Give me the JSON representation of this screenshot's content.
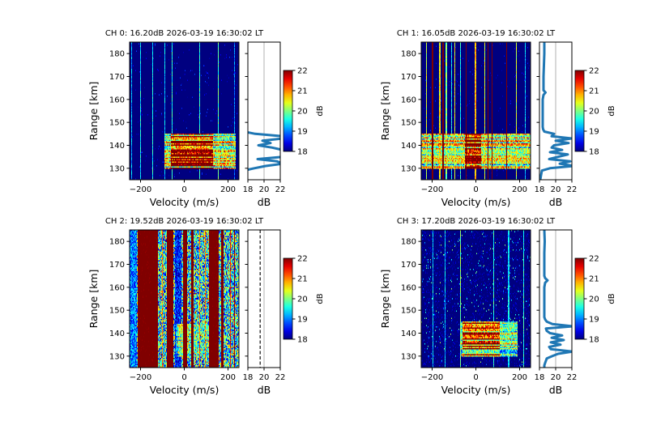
{
  "chart_data": [
    {
      "type": "heatmap",
      "title": "CH 0: 16.20dB 2026-03-19 16:30:02 LT",
      "xlabel": "Velocity (m/s)",
      "ylabel": "Range [km]",
      "xlim": [
        -250,
        250
      ],
      "ylim": [
        125,
        185
      ],
      "x_ticks": [
        -200,
        0,
        200
      ],
      "x_tick_labels": [
        "−200",
        "0",
        "200"
      ],
      "y_ticks": [
        130,
        140,
        150,
        160,
        170,
        180
      ],
      "y_tick_labels": [
        "130",
        "140",
        "150",
        "160",
        "170",
        "180"
      ],
      "colormap": "jet",
      "clim": [
        18,
        22
      ],
      "colorbar": {
        "label": "dB",
        "ticks": [
          18,
          19,
          20,
          21,
          22
        ],
        "tick_labels": [
          "18",
          "19",
          "20",
          "21",
          "22"
        ]
      },
      "noise_floor_db": 16.2,
      "streaks": [
        {
          "velocity": -240,
          "db": 19.2
        },
        {
          "velocity": -200,
          "db": 19.5
        },
        {
          "velocity": -145,
          "db": 19.5
        },
        {
          "velocity": -90,
          "db": 19.3
        },
        {
          "velocity": -55,
          "db": 19.6
        },
        {
          "velocity": 70,
          "db": 19.6
        },
        {
          "velocity": 155,
          "db": 19.8
        },
        {
          "velocity": 230,
          "db": 19
        }
      ],
      "echo": {
        "range_km": [
          130,
          145
        ],
        "velocity": [
          -90,
          235
        ],
        "core_velocity": [
          -60,
          130
        ],
        "peak_db": 23
      },
      "profile": {
        "xlabel": "dB",
        "xlim": [
          18,
          22
        ],
        "x_ticks": [
          18,
          20,
          22
        ],
        "x_tick_labels": [
          "18",
          "20",
          "22"
        ],
        "reference_line_db": 20,
        "noise_line_db": null,
        "range_km": [
          125,
          126,
          127,
          128,
          129,
          130,
          131,
          132,
          133,
          134,
          135,
          136,
          137,
          138,
          139,
          140,
          141,
          142,
          143,
          144,
          145,
          146,
          147,
          148,
          149,
          150,
          155,
          160,
          165,
          170,
          175,
          180,
          185
        ],
        "db": [
          17,
          17,
          17,
          17,
          17.5,
          18.8,
          20.2,
          22.3,
          21.6,
          19.2,
          22.3,
          22.3,
          22.3,
          22.3,
          21,
          19.3,
          20.8,
          19.8,
          22.3,
          22.3,
          18.9,
          17.5,
          17,
          17,
          17,
          17,
          17,
          17,
          17,
          17,
          17,
          17,
          17
        ]
      }
    },
    {
      "type": "heatmap",
      "title": "CH 1: 16.05dB 2026-03-19 16:30:02 LT",
      "xlabel": "Velocity (m/s)",
      "ylabel": "Range [km]",
      "xlim": [
        -250,
        250
      ],
      "ylim": [
        125,
        185
      ],
      "x_ticks": [
        -200,
        0,
        200
      ],
      "x_tick_labels": [
        "−200",
        "0",
        "200"
      ],
      "y_ticks": [
        130,
        140,
        150,
        160,
        170,
        180
      ],
      "y_tick_labels": [
        "130",
        "140",
        "150",
        "160",
        "170",
        "180"
      ],
      "colormap": "jet",
      "clim": [
        18,
        22
      ],
      "colorbar": {
        "label": "dB",
        "ticks": [
          18,
          19,
          20,
          21,
          22
        ],
        "tick_labels": [
          "18",
          "19",
          "20",
          "21",
          "22"
        ]
      },
      "noise_floor_db": 16.05,
      "streaks": [
        {
          "velocity": -225,
          "db": 20.3
        },
        {
          "velocity": -198,
          "db": 22.5
        },
        {
          "velocity": -165,
          "db": 20.5
        },
        {
          "velocity": -150,
          "db": 22.5
        },
        {
          "velocity": -135,
          "db": 20
        },
        {
          "velocity": -110,
          "db": 19.5
        },
        {
          "velocity": -95,
          "db": 20.5
        },
        {
          "velocity": -70,
          "db": 19.6
        },
        {
          "velocity": -45,
          "db": 22.5
        },
        {
          "velocity": -2,
          "db": 20.8
        },
        {
          "velocity": 40,
          "db": 20.4
        },
        {
          "velocity": 55,
          "db": 22.5
        },
        {
          "velocity": 75,
          "db": 22.5
        },
        {
          "velocity": 140,
          "db": 22.5
        },
        {
          "velocity": 185,
          "db": 20.3
        },
        {
          "velocity": 225,
          "db": 19.3
        }
      ],
      "echo": {
        "range_km": [
          130,
          145
        ],
        "velocity": [
          -250,
          250
        ],
        "core_velocity": [
          -50,
          25
        ],
        "peak_db": 23
      },
      "profile": {
        "xlabel": "dB",
        "xlim": [
          18,
          22
        ],
        "x_ticks": [
          18,
          20,
          22
        ],
        "x_tick_labels": [
          "18",
          "20",
          "22"
        ],
        "reference_line_db": 20,
        "noise_line_db": null,
        "range_km": [
          125,
          126,
          127,
          128,
          129,
          130,
          131,
          132,
          133,
          134,
          135,
          136,
          137,
          138,
          139,
          140,
          141,
          142,
          143,
          144,
          145,
          146,
          147,
          148,
          150,
          155,
          160,
          162,
          163,
          164,
          165,
          170,
          175,
          180,
          185
        ],
        "db": [
          18.1,
          18.15,
          18.2,
          18.25,
          18.3,
          19.3,
          22.3,
          20.5,
          21.8,
          19.2,
          20.3,
          21.5,
          19.3,
          20.8,
          19.5,
          19.8,
          21.6,
          20,
          22,
          19.5,
          19.8,
          18.6,
          18.45,
          18.4,
          18.4,
          18.4,
          18.4,
          18.5,
          18.75,
          18.5,
          18.5,
          18.5,
          18.55,
          18.6,
          18.6
        ]
      }
    },
    {
      "type": "heatmap",
      "title": "CH 2: 19.52dB 2026-03-19 16:30:02 LT",
      "xlabel": "Velocity (m/s)",
      "ylabel": "Range [km]",
      "xlim": [
        -250,
        250
      ],
      "ylim": [
        125,
        185
      ],
      "x_ticks": [
        -200,
        0,
        200
      ],
      "x_tick_labels": [
        "−200",
        "0",
        "200"
      ],
      "y_ticks": [
        130,
        140,
        150,
        160,
        170,
        180
      ],
      "y_tick_labels": [
        "130",
        "140",
        "150",
        "160",
        "170",
        "180"
      ],
      "colormap": "jet",
      "clim": [
        18,
        22
      ],
      "colorbar": {
        "label": "dB",
        "ticks": [
          18,
          19,
          20,
          21,
          22
        ],
        "tick_labels": [
          "18",
          "19",
          "20",
          "21",
          "22"
        ]
      },
      "noise_floor_db": 19.52,
      "bands": [
        {
          "velocity": [
            -250,
            -215
          ],
          "db": 19
        },
        {
          "velocity": [
            -212,
            -120
          ],
          "db": 22.5
        },
        {
          "velocity": [
            -81,
            -50
          ],
          "db": 22.5
        },
        {
          "velocity": [
            -44,
            -12
          ],
          "db": 18.6
        },
        {
          "velocity": [
            -6,
            12
          ],
          "db": 22.5
        },
        {
          "velocity": [
            31,
            44
          ],
          "db": 22.5
        },
        {
          "velocity": [
            112,
            156
          ],
          "db": 22.5
        },
        {
          "velocity": [
            169,
            181
          ],
          "db": 22.5
        }
      ],
      "streaks": [
        {
          "velocity": -185,
          "db": 20.5
        },
        {
          "velocity": -160,
          "db": 20.5
        },
        {
          "velocity": -100,
          "db": 21
        },
        {
          "velocity": 70,
          "db": 21
        },
        {
          "velocity": 95,
          "db": 21
        },
        {
          "velocity": 210,
          "db": 21.5
        },
        {
          "velocity": 230,
          "db": 22
        }
      ],
      "echo": {
        "range_km": [
          130,
          144
        ],
        "velocity": [
          -40,
          130
        ],
        "core_velocity": [
          -30,
          20
        ],
        "peak_db": 20.5
      },
      "profile": {
        "xlabel": "dB",
        "xlim": [
          18,
          22
        ],
        "x_ticks": [
          18,
          20,
          22
        ],
        "x_tick_labels": [
          "18",
          "20",
          "22"
        ],
        "reference_line_db": 20,
        "noise_line_db": 19.52,
        "range_km": [],
        "db": []
      }
    },
    {
      "type": "heatmap",
      "title": "CH 3: 17.20dB 2026-03-19 16:30:02 LT",
      "xlabel": "Velocity (m/s)",
      "ylabel": "Range [km]",
      "xlim": [
        -250,
        250
      ],
      "ylim": [
        125,
        185
      ],
      "x_ticks": [
        -200,
        0,
        200
      ],
      "x_tick_labels": [
        "−200",
        "0",
        "200"
      ],
      "y_ticks": [
        130,
        140,
        150,
        160,
        170,
        180
      ],
      "y_tick_labels": [
        "130",
        "140",
        "150",
        "160",
        "170",
        "180"
      ],
      "colormap": "jet",
      "clim": [
        18,
        22
      ],
      "colorbar": {
        "label": "dB",
        "ticks": [
          18,
          19,
          20,
          21,
          22
        ],
        "tick_labels": [
          "18",
          "19",
          "20",
          "21",
          "22"
        ]
      },
      "noise_floor_db": 17.2,
      "streaks": [
        {
          "velocity": -195,
          "db": 19.3
        },
        {
          "velocity": -140,
          "db": 19.3
        },
        {
          "velocity": -70,
          "db": 20
        },
        {
          "velocity": 80,
          "db": 19.6
        },
        {
          "velocity": 150,
          "db": 19.4
        },
        {
          "velocity": 220,
          "db": 19.6
        }
      ],
      "echo": {
        "range_km": [
          130,
          145
        ],
        "velocity": [
          -70,
          190
        ],
        "core_velocity": [
          -60,
          110
        ],
        "peak_db": 22.5
      },
      "profile": {
        "xlabel": "dB",
        "xlim": [
          18,
          22
        ],
        "x_ticks": [
          18,
          20,
          22
        ],
        "x_tick_labels": [
          "18",
          "20",
          "22"
        ],
        "reference_line_db": 20,
        "noise_line_db": null,
        "range_km": [
          125,
          126,
          127,
          128,
          129,
          130,
          131,
          132,
          133,
          134,
          135,
          136,
          137,
          138,
          139,
          140,
          141,
          142,
          143,
          144,
          145,
          146,
          147,
          148,
          150,
          155,
          160,
          162,
          163,
          164,
          165,
          170,
          175,
          180,
          185
        ],
        "db": [
          18.6,
          18.6,
          18.7,
          18.8,
          18.9,
          19.6,
          20.3,
          22.1,
          19.4,
          19.2,
          20.6,
          19.4,
          21,
          19.5,
          20.8,
          19.3,
          18.9,
          18.8,
          22.1,
          19.6,
          18.9,
          18.7,
          18.6,
          18.6,
          18.6,
          18.6,
          18.6,
          18.7,
          19,
          18.7,
          18.6,
          18.6,
          18.6,
          18.65,
          18.6
        ]
      }
    }
  ]
}
